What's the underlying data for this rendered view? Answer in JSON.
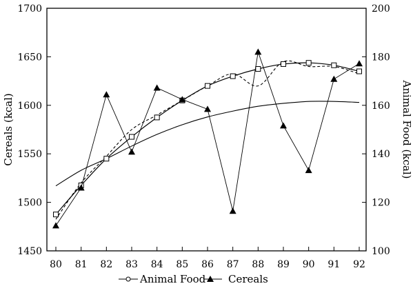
{
  "chart_data": {
    "type": "line",
    "title": "",
    "x": [
      "80",
      "81",
      "82",
      "83",
      "84",
      "85",
      "86",
      "87",
      "88",
      "89",
      "90",
      "91",
      "92"
    ],
    "ylabel_left": "Cereals (kcal)",
    "ylabel_right": "Animal Food (kcal)",
    "ylim_left": [
      1450,
      1700
    ],
    "ylim_right": [
      100,
      200
    ],
    "yticks_left": [
      1450,
      1500,
      1550,
      1600,
      1650,
      1700
    ],
    "yticks_right": [
      100,
      120,
      140,
      160,
      180,
      200
    ],
    "grid": false,
    "legend_position": "bottom",
    "series": [
      {
        "name": "Animal Food",
        "axis": "right",
        "marker": "square",
        "values": [
          115,
          127,
          138,
          147,
          155,
          162,
          168,
          172,
          175,
          177,
          177.5,
          176.5,
          174
        ]
      },
      {
        "name": "Cereals",
        "axis": "left",
        "marker": "triangle",
        "values": [
          1476,
          1515,
          1611,
          1552,
          1618,
          1606,
          1596,
          1491,
          1655,
          1579,
          1533,
          1627,
          1643
        ]
      }
    ],
    "trend_lines": [
      {
        "series": "Animal Food",
        "axis": "right",
        "style": "dashed",
        "values": [
          113,
          128,
          139,
          150,
          156,
          162,
          168,
          173,
          168,
          178,
          176,
          176,
          173
        ]
      },
      {
        "series": "Cereals",
        "axis": "left",
        "style": "solid",
        "values": [
          1517,
          1533,
          1545,
          1558,
          1570,
          1580,
          1588,
          1594,
          1599,
          1602,
          1604,
          1604,
          1603
        ]
      }
    ],
    "colors": {
      "line": "#000000",
      "background": "#ffffff"
    }
  }
}
